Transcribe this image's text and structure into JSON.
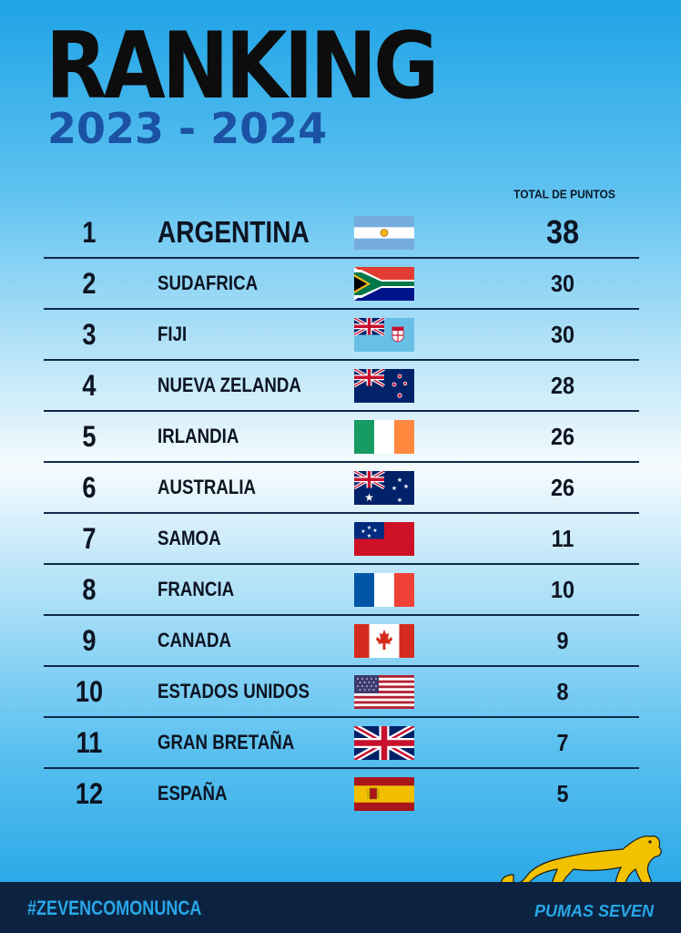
{
  "title": "RANKING",
  "subtitle": "2023 - 2024",
  "points_header": "TOTAL DE PUNTOS",
  "rows": [
    {
      "rank": "1",
      "team": "ARGENTINA",
      "points": "38",
      "flag": "argentina-flag-icon"
    },
    {
      "rank": "2",
      "team": "SUDAFRICA",
      "points": "30",
      "flag": "south-africa-flag-icon"
    },
    {
      "rank": "3",
      "team": "FIJI",
      "points": "30",
      "flag": "fiji-flag-icon"
    },
    {
      "rank": "4",
      "team": "NUEVA ZELANDA",
      "points": "28",
      "flag": "new-zealand-flag-icon"
    },
    {
      "rank": "5",
      "team": "IRLANDIA",
      "points": "26",
      "flag": "ireland-flag-icon"
    },
    {
      "rank": "6",
      "team": "AUSTRALIA",
      "points": "26",
      "flag": "australia-flag-icon"
    },
    {
      "rank": "7",
      "team": "SAMOA",
      "points": "11",
      "flag": "samoa-flag-icon"
    },
    {
      "rank": "8",
      "team": "FRANCIA",
      "points": "10",
      "flag": "france-flag-icon"
    },
    {
      "rank": "9",
      "team": "CANADA",
      "points": "9",
      "flag": "canada-flag-icon"
    },
    {
      "rank": "10",
      "team": "ESTADOS UNIDOS",
      "points": "8",
      "flag": "usa-flag-icon"
    },
    {
      "rank": "11",
      "team": "GRAN BRETAÑA",
      "points": "7",
      "flag": "great-britain-flag-icon"
    },
    {
      "rank": "12",
      "team": "ESPAÑA",
      "points": "5",
      "flag": "spain-flag-icon"
    }
  ],
  "footer": {
    "hashtag": "#ZEVENCOMONUNCA",
    "brand": "PUMAS SEVEN",
    "logo_icon": "puma-logo-icon"
  },
  "colors": {
    "title": "#0d0d0d",
    "subtitle": "#1b52a3",
    "footer_bg": "#0b2340",
    "footer_text": "#29a6e8",
    "puma": "#f2c200"
  }
}
